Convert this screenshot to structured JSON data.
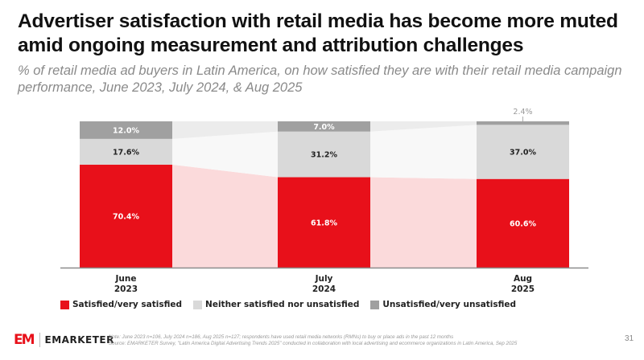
{
  "header": {
    "title": "Advertiser satisfaction with retail media has become more muted amid ongoing measurement and attribution challenges",
    "subtitle": "% of retail media ad buyers in Latin America, on how satisfied they are with their retail media campaign performance, June 2023, July 2024, & Aug 2025"
  },
  "chart_data": {
    "type": "bar",
    "stacked": true,
    "categories": [
      "June\n2023",
      "July\n2024",
      "Aug\n2025"
    ],
    "category_lines": [
      [
        "June",
        "2023"
      ],
      [
        "July",
        "2024"
      ],
      [
        "Aug",
        "2025"
      ]
    ],
    "series": [
      {
        "name": "Satisfied/very satisfied",
        "color": "#e8101a",
        "connector_color": "#fbdadb",
        "label_color": "#ffffff",
        "values": [
          70.4,
          61.8,
          60.6
        ],
        "labels": [
          "70.4%",
          "61.8%",
          "60.6%"
        ]
      },
      {
        "name": "Neither satisfied nor unsatisfied",
        "color": "#d9d9d9",
        "connector_color": "#f8f8f8",
        "label_color": "#222222",
        "values": [
          17.6,
          31.2,
          37.0
        ],
        "labels": [
          "17.6%",
          "31.2%",
          "37.0%"
        ]
      },
      {
        "name": "Unsatisfied/very unsatisfied",
        "color": "#a0a0a0",
        "connector_color": "#ececec",
        "label_color": "#ffffff",
        "values": [
          12.0,
          7.0,
          2.4
        ],
        "labels": [
          "12.0%",
          "7.0%",
          "2.4%"
        ]
      }
    ],
    "outside_label_color": "#9a9a9a",
    "ylim": [
      0,
      100
    ],
    "grid": false,
    "legend_position": "bottom-left",
    "xlabel": "",
    "ylabel": ""
  },
  "legend": [
    {
      "label": "Satisfied/very satisfied",
      "color": "#e8101a"
    },
    {
      "label": "Neither satisfied nor unsatisfied",
      "color": "#d9d9d9"
    },
    {
      "label": "Unsatisfied/very unsatisfied",
      "color": "#a0a0a0"
    }
  ],
  "footer": {
    "logo_mark": "EM",
    "logo_text": "EMARKETER",
    "note": "Note: June 2023 n=106, July 2024 n=186, Aug 2025 n=127; respondents have used retail media networks (RMNs) to buy or place ads in the past 12 months",
    "source": "Source: EMARKETER Survey, \"Latin America Digital Advertising Trends 2025\" conducted in collaboration with local advertising and ecommerce organizations in Latin America, Sep 2025",
    "page_number": "31"
  }
}
